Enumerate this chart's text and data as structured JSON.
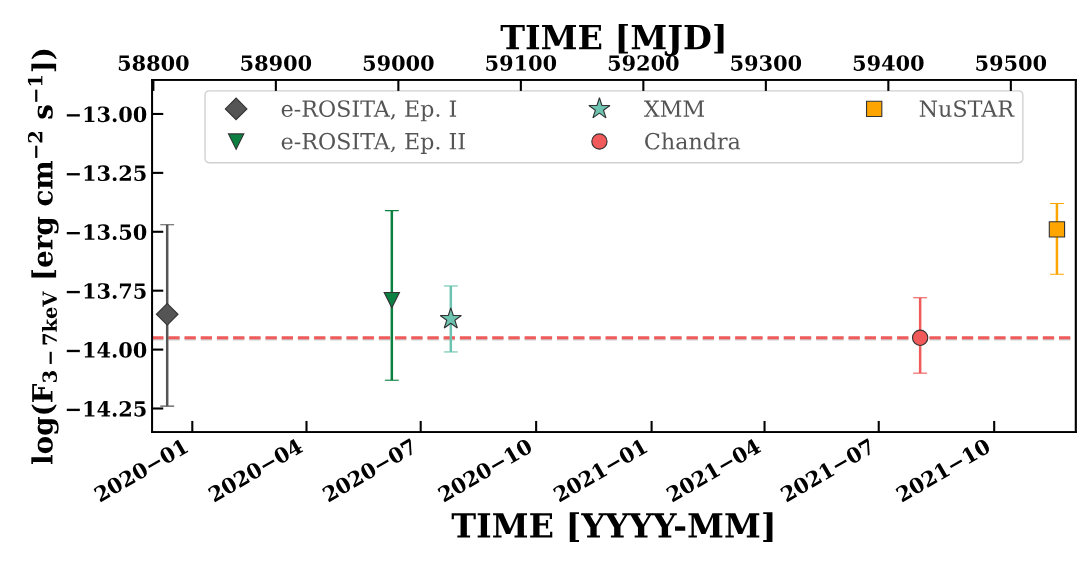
{
  "chart_data": {
    "type": "scatter",
    "xlabel": "TIME [YYYY-MM]",
    "x2label": "TIME [MJD]",
    "ylabel": "log(F$_{3−7keV}$ [erg cm$^{−2}$ s$^{−1}$])",
    "xlim": [
      "2019-11-30",
      "2021-12-05"
    ],
    "xticks": [
      {
        "value": "2020-01-01",
        "label": "2020−01"
      },
      {
        "value": "2020-04-01",
        "label": "2020−04"
      },
      {
        "value": "2020-07-01",
        "label": "2020−07"
      },
      {
        "value": "2020-10-01",
        "label": "2020−10"
      },
      {
        "value": "2021-01-01",
        "label": "2021−01"
      },
      {
        "value": "2021-04-01",
        "label": "2021−04"
      },
      {
        "value": "2021-07-01",
        "label": "2021−07"
      },
      {
        "value": "2021-10-01",
        "label": "2021−10"
      }
    ],
    "x2lim": [
      58799,
      59553
    ],
    "x2ticks": [
      58800,
      58900,
      59000,
      59100,
      59200,
      59300,
      59400,
      59500
    ],
    "ylim": [
      -14.35,
      -12.855
    ],
    "yticks": [
      {
        "value": -13.0,
        "label": "−13.00"
      },
      {
        "value": -13.25,
        "label": "−13.25"
      },
      {
        "value": -13.5,
        "label": "−13.50"
      },
      {
        "value": -13.75,
        "label": "−13.75"
      },
      {
        "value": -14.0,
        "label": "−14.00"
      },
      {
        "value": -14.25,
        "label": "−14.25"
      }
    ],
    "series": [
      {
        "name": "e-ROSITA, Ep. I",
        "color": "#555555",
        "marker": "diamond",
        "x": [
          "2019-12-12"
        ],
        "values": [
          -13.85
        ],
        "errors": [
          [
            -14.24,
            -13.47
          ]
        ]
      },
      {
        "name": "e-ROSITA, Ep. II",
        "color": "#0b8040",
        "marker": "triangle",
        "x": [
          "2020-06-08"
        ],
        "values": [
          -13.79
        ],
        "errors": [
          [
            -14.13,
            -13.41
          ]
        ]
      },
      {
        "name": "XMM",
        "color": "#6cc3b0",
        "marker": "star",
        "x": [
          "2020-07-25"
        ],
        "values": [
          -13.87
        ],
        "errors": [
          [
            -14.01,
            -13.73
          ]
        ]
      },
      {
        "name": "Chandra",
        "color": "#f05a5a",
        "marker": "circle",
        "x": [
          "2021-08-03"
        ],
        "values": [
          -13.95
        ],
        "errors": [
          [
            -14.1,
            -13.78
          ]
        ]
      },
      {
        "name": "NuSTAR",
        "color": "#ffa500",
        "marker": "square",
        "x": [
          "2021-11-20"
        ],
        "values": [
          -13.49
        ],
        "errors": [
          [
            -13.68,
            -13.38
          ]
        ]
      }
    ],
    "ref_lines": [
      {
        "axis": "y",
        "value": -13.955,
        "color": "#cccccc",
        "line_style": "dashed"
      },
      {
        "axis": "y",
        "value": -13.95,
        "color": "#f05a5a",
        "line_style": "dashed"
      }
    ],
    "legend": "top",
    "grid": false
  }
}
